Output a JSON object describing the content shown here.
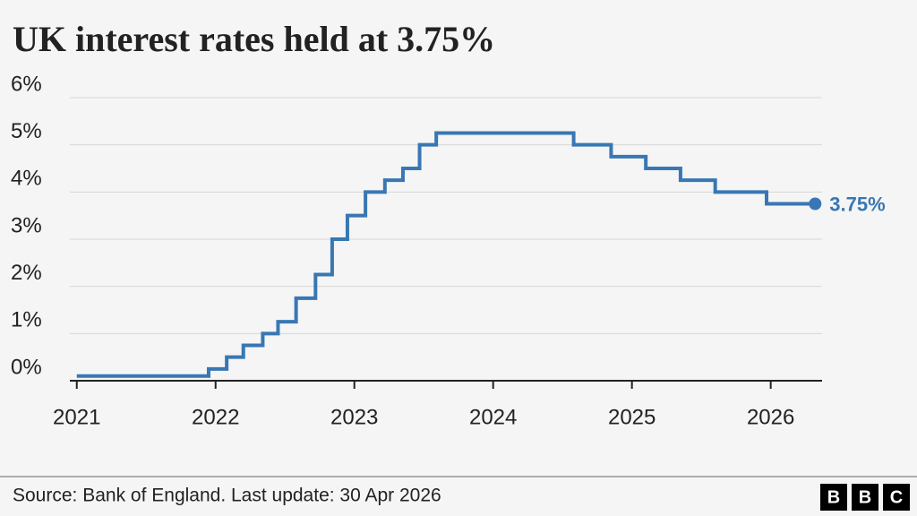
{
  "chart_data": {
    "type": "step",
    "title": "UK interest rates held at 3.75%",
    "source": "Source: Bank of England. Last update: 30 Apr 2026",
    "logo": [
      "B",
      "B",
      "C"
    ],
    "x": [
      2021.0,
      2021.95,
      2022.08,
      2022.2,
      2022.34,
      2022.45,
      2022.58,
      2022.72,
      2022.84,
      2022.95,
      2023.08,
      2023.22,
      2023.35,
      2023.47,
      2023.59,
      2024.58,
      2024.85,
      2025.1,
      2025.35,
      2025.6,
      2025.97,
      2026.32
    ],
    "series": [
      {
        "color": "#3877b3",
        "values": [
          0.1,
          0.25,
          0.5,
          0.75,
          1.0,
          1.25,
          1.75,
          2.25,
          3.0,
          3.5,
          4.0,
          4.25,
          4.5,
          5.0,
          5.25,
          5.0,
          4.75,
          4.5,
          4.25,
          4.0,
          3.75,
          3.75
        ]
      }
    ],
    "end_label": {
      "value": 3.75,
      "label": "3.75%"
    },
    "xlim": [
      2020.95,
      2026.37
    ],
    "xticks": [
      2021,
      2022,
      2023,
      2024,
      2025,
      2026
    ],
    "ylim": [
      0,
      6
    ],
    "yticks": [
      {
        "value": 0,
        "label": "0%"
      },
      {
        "value": 1,
        "label": "1%"
      },
      {
        "value": 2,
        "label": "2%"
      },
      {
        "value": 3,
        "label": "3%"
      },
      {
        "value": 4,
        "label": "4%"
      },
      {
        "value": 5,
        "label": "5%"
      },
      {
        "value": 6,
        "label": "6%"
      }
    ],
    "grid": true
  }
}
